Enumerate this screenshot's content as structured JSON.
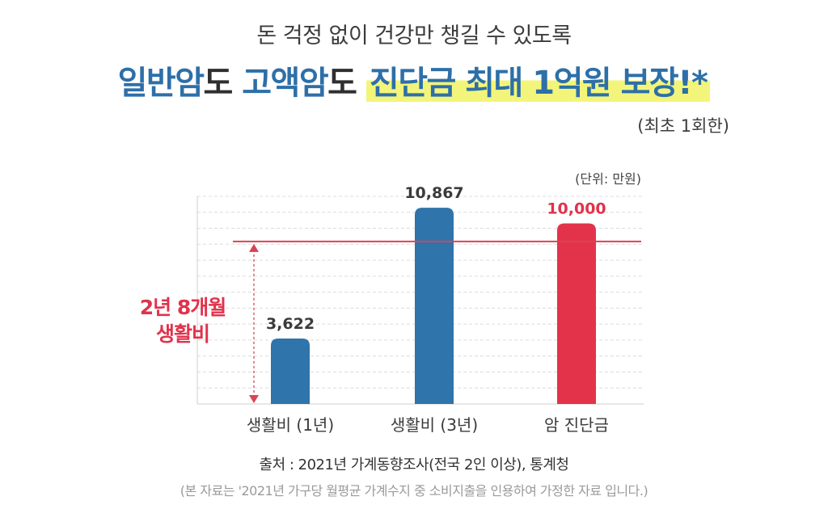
{
  "subtitle": "돈 걱정 없이 건강만 챙길 수 있도록",
  "headline": {
    "part1": "일반암",
    "part2": "도 ",
    "part3": "고액암",
    "part4": "도 ",
    "part5": "진단금 최대 1억원 보장!*"
  },
  "note": "(최초 1회한)",
  "chart_data": {
    "type": "bar",
    "categories": [
      "생활비 (1년)",
      "생활비 (3년)",
      "암 진단금"
    ],
    "values": [
      3622,
      10867,
      10000
    ],
    "value_labels": [
      "3,622",
      "10,867",
      "10,000"
    ],
    "unit": "(단위: 만원)",
    "ylim": [
      0,
      11500
    ],
    "grid": true,
    "reference_line": 9000,
    "annotation": [
      "2년 8개월",
      "생활비"
    ],
    "colors": {
      "bar_default": "#2f74aa",
      "bar_highlight": "#e3334b",
      "reference_line": "#d94357",
      "value_highlight": "#e0334c"
    }
  },
  "source": "출처 : 2021년 가계동향조사(전국 2인 이상), 통계청",
  "disclaimer": "(본 자료는 '2021년 가구당 월평균 가계수지 중 소비지출을 인용하여 가정한 자료 입니다.)"
}
